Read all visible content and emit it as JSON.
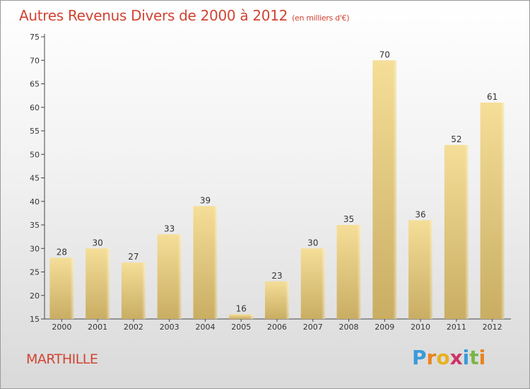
{
  "title": "Autres Revenus Divers de 2000 à 2012",
  "unit_note": "(en milliers d'€)",
  "location": "MARTHILLE",
  "brand": {
    "letters": [
      "P",
      "r",
      "o",
      "x",
      "i",
      "t",
      "i"
    ],
    "colors": [
      "#3a9ad9",
      "#e8841e",
      "#e8b11e",
      "#cc3366",
      "#3a9ad9",
      "#7ab648",
      "#e8841e"
    ]
  },
  "chart_data": {
    "type": "bar",
    "categories": [
      "2000",
      "2001",
      "2002",
      "2003",
      "2004",
      "2005",
      "2006",
      "2007",
      "2008",
      "2009",
      "2010",
      "2011",
      "2012"
    ],
    "values": [
      28,
      30,
      27,
      33,
      39,
      16,
      23,
      30,
      35,
      70,
      36,
      52,
      61
    ],
    "ylim": [
      15,
      75
    ],
    "yticks": [
      15,
      20,
      25,
      30,
      35,
      40,
      45,
      50,
      55,
      60,
      65,
      70,
      75
    ],
    "grid": false,
    "legend": "none",
    "bar_color_top": "#f5de98",
    "bar_color_bottom": "#c9ad63"
  }
}
